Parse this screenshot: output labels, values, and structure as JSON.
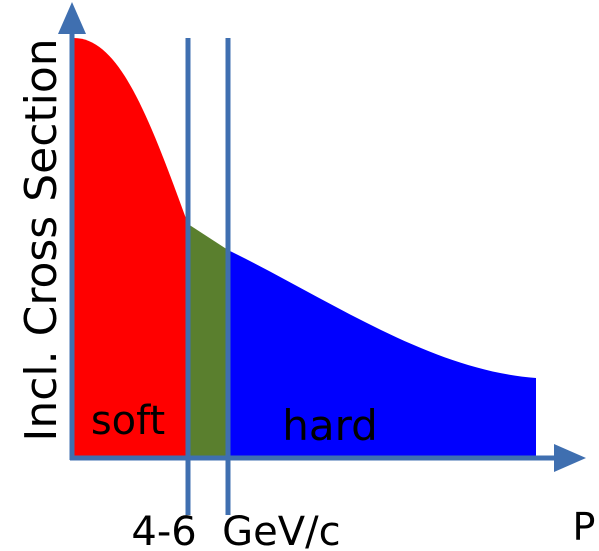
{
  "diagram": {
    "y_axis_label": "Incl. Cross Section",
    "x_axis_label": "P",
    "boundary_label": "4-6  GeV/c",
    "regions": [
      {
        "name": "soft",
        "label": "soft",
        "color": "#ff0000"
      },
      {
        "name": "transition",
        "label": "",
        "color": "#5a7f2e"
      },
      {
        "name": "hard",
        "label": "hard",
        "color": "#0000ff"
      }
    ],
    "axis_color": "#3f6fb0",
    "boundary_line_color": "#3f6fb0"
  }
}
